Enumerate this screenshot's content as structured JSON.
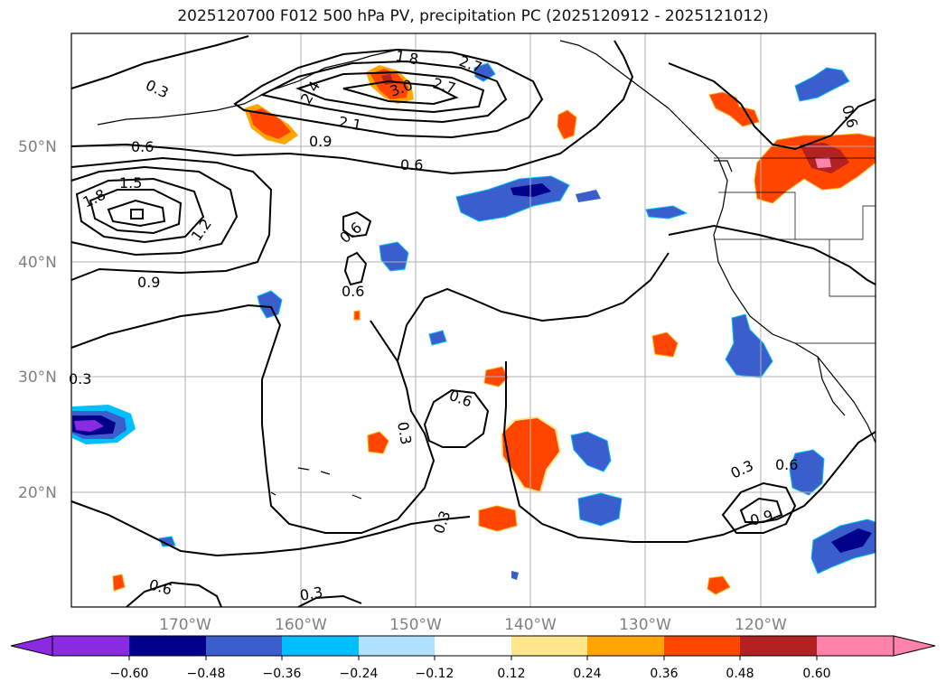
{
  "title": "2025120700 F012 500 hPa PV, precipitation PC (2025120912 - 2025121012)",
  "lat_labels": [
    "50°N",
    "40°N",
    "30°N",
    "20°N"
  ],
  "lon_labels": [
    "170°W",
    "160°W",
    "150°W",
    "140°W",
    "130°W",
    "120°W"
  ],
  "contour_labels": [
    "0.3",
    "0.6",
    "0.9",
    "1.2",
    "1.5",
    "1.8",
    "2.1",
    "2.4",
    "2.7",
    "3.0"
  ],
  "colorbar": {
    "ticks": [
      "−0.60",
      "−0.48",
      "−0.36",
      "−0.24",
      "−0.12",
      "0.12",
      "0.24",
      "0.36",
      "0.48",
      "0.60"
    ],
    "colors": [
      "#8a2be2",
      "#00008b",
      "#3a5fcd",
      "#00bfff",
      "#b0e2ff",
      "#ffffff",
      "#ffe68a",
      "#ffa500",
      "#ff4500",
      "#b22222",
      "#ff82ab"
    ]
  }
}
